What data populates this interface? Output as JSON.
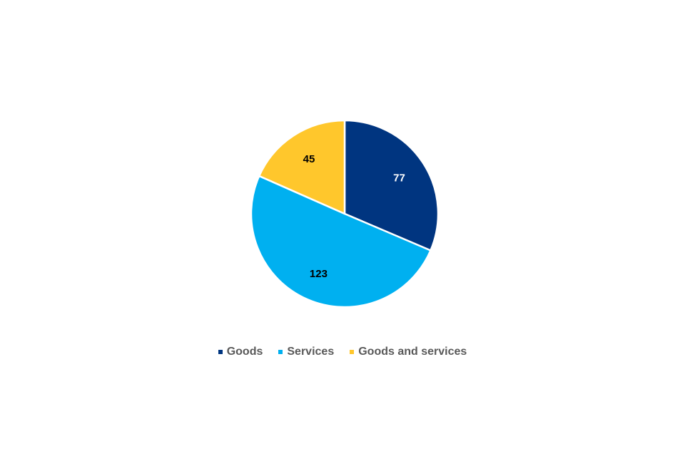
{
  "chart_data": {
    "type": "pie",
    "categories": [
      "Goods",
      "Services",
      "Goods and services"
    ],
    "values": [
      77,
      123,
      45
    ],
    "colors": [
      "#003580",
      "#00B0F0",
      "#FFC72C"
    ],
    "label_colors": [
      "#FFFFFF",
      "#000000",
      "#000000"
    ],
    "start_angle": "top, clockwise",
    "legend_position": "bottom",
    "data_labels": [
      "77",
      "123",
      "45"
    ]
  }
}
